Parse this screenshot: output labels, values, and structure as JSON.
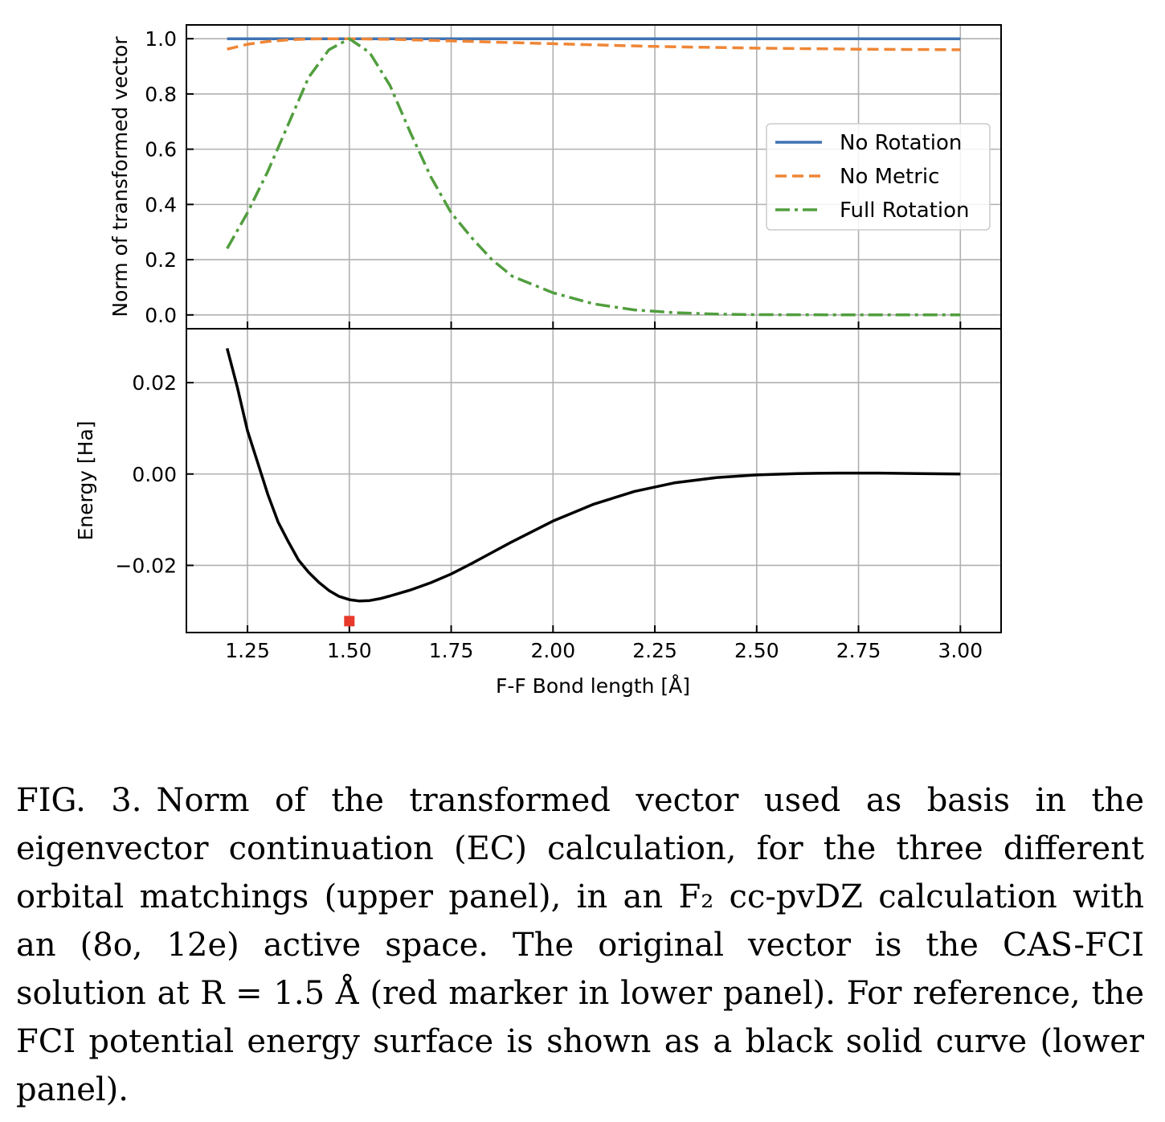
{
  "chart_data": [
    {
      "type": "line",
      "panel": "upper",
      "ylabel": "Norm of transformed vector",
      "xlim": [
        1.1,
        3.1
      ],
      "ylim": [
        -0.05,
        1.05
      ],
      "yticks": [
        0.0,
        0.2,
        0.4,
        0.6,
        0.8,
        1.0
      ],
      "ytick_labels": [
        "0.0",
        "0.2",
        "0.4",
        "0.6",
        "0.8",
        "1.0"
      ],
      "xticks": [
        1.25,
        1.5,
        1.75,
        2.0,
        2.25,
        2.5,
        2.75,
        3.0
      ],
      "grid": true,
      "legend_position": "right",
      "series": [
        {
          "name": "No Rotation",
          "color": "#3f73b3",
          "style": "solid",
          "x": [
            1.2,
            1.3,
            1.4,
            1.5,
            1.75,
            2.0,
            2.5,
            3.0
          ],
          "y": [
            1.0,
            1.0,
            1.0,
            1.0,
            1.0,
            1.0,
            1.0,
            1.0
          ]
        },
        {
          "name": "No Metric",
          "color": "#ef8636",
          "style": "dashed",
          "x": [
            1.2,
            1.25,
            1.3,
            1.35,
            1.4,
            1.45,
            1.5,
            1.6,
            1.75,
            2.0,
            2.25,
            2.5,
            2.75,
            3.0
          ],
          "y": [
            0.962,
            0.98,
            0.99,
            0.996,
            0.999,
            1.0,
            1.0,
            0.998,
            0.992,
            0.982,
            0.972,
            0.966,
            0.962,
            0.96
          ]
        },
        {
          "name": "Full Rotation",
          "color": "#519e3e",
          "style": "dashdot",
          "x": [
            1.2,
            1.25,
            1.3,
            1.35,
            1.4,
            1.45,
            1.5,
            1.55,
            1.6,
            1.65,
            1.7,
            1.75,
            1.8,
            1.85,
            1.9,
            2.0,
            2.1,
            2.2,
            2.3,
            2.4,
            2.5,
            2.75,
            3.0
          ],
          "y": [
            0.24,
            0.37,
            0.52,
            0.69,
            0.86,
            0.96,
            1.0,
            0.95,
            0.83,
            0.66,
            0.5,
            0.37,
            0.28,
            0.2,
            0.14,
            0.08,
            0.04,
            0.018,
            0.008,
            0.003,
            0.001,
            0.0,
            0.0
          ]
        }
      ]
    },
    {
      "type": "line",
      "panel": "lower",
      "ylabel": "Energy [Ha]",
      "xlabel": "F-F Bond length [Å]",
      "xlim": [
        1.1,
        3.1
      ],
      "ylim": [
        -0.0347,
        0.0318
      ],
      "yticks": [
        -0.02,
        0.0,
        0.02
      ],
      "ytick_labels": [
        "−0.02",
        "0.00",
        "0.02"
      ],
      "xticks": [
        1.25,
        1.5,
        1.75,
        2.0,
        2.25,
        2.5,
        2.75,
        3.0
      ],
      "xtick_labels": [
        "1.25",
        "1.50",
        "1.75",
        "2.00",
        "2.25",
        "2.50",
        "2.75",
        "3.00"
      ],
      "grid": true,
      "series": [
        {
          "color": "#000000",
          "style": "solid",
          "x": [
            1.2,
            1.225,
            1.25,
            1.275,
            1.3,
            1.325,
            1.35,
            1.375,
            1.4,
            1.425,
            1.45,
            1.475,
            1.5,
            1.525,
            1.55,
            1.575,
            1.6,
            1.65,
            1.7,
            1.75,
            1.8,
            1.85,
            1.9,
            2.0,
            2.1,
            2.2,
            2.3,
            2.4,
            2.5,
            2.6,
            2.7,
            2.8,
            2.9,
            3.0
          ],
          "y": [
            0.0275,
            0.019,
            0.0095,
            0.0025,
            -0.0045,
            -0.0105,
            -0.0148,
            -0.0188,
            -0.0215,
            -0.0237,
            -0.0255,
            -0.0268,
            -0.0275,
            -0.0278,
            -0.0277,
            -0.0273,
            -0.0267,
            -0.0254,
            -0.0238,
            -0.0219,
            -0.0196,
            -0.0172,
            -0.0148,
            -0.0103,
            -0.0066,
            -0.0038,
            -0.0019,
            -0.0008,
            -0.0002,
            0.0001,
            0.0002,
            0.0002,
            0.0001,
            0.0
          ]
        },
        {
          "type": "marker",
          "color": "#e8392b",
          "x": [
            1.5
          ],
          "y": [
            -0.0322
          ]
        }
      ]
    }
  ],
  "caption": {
    "label": "FIG. 3.",
    "text": "Norm of the transformed vector used as basis in the eigenvector continuation (EC) calculation, for the three different orbital matchings (upper panel), in an F₂ cc-pvDZ calculation with an (8o, 12e) active space. The original vector is the CAS-FCI solution at R = 1.5 Å (red marker in lower panel). For reference, the FCI potential energy surface is shown as a black solid curve (lower panel)."
  }
}
